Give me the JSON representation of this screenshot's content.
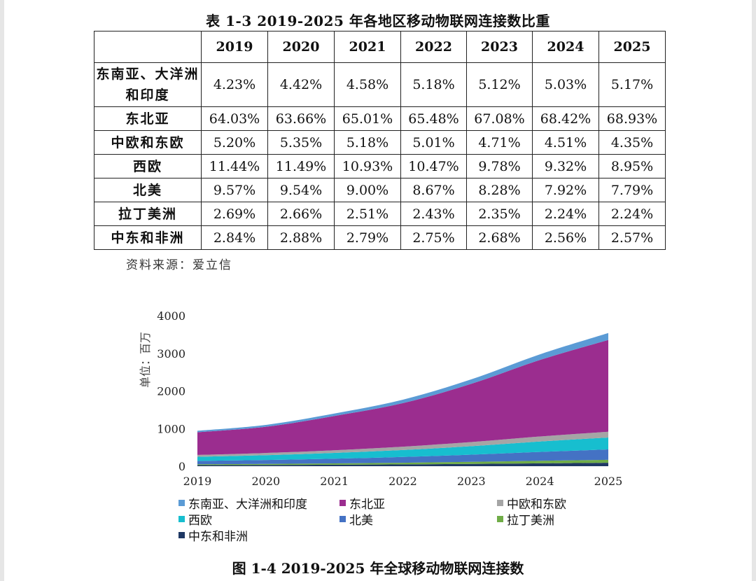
{
  "table": {
    "title": "表 1-3  2019-2025 年各地区移动物联网连接数比重",
    "header": [
      "",
      "2019",
      "2020",
      "2021",
      "2022",
      "2023",
      "2024",
      "2025"
    ],
    "rows": [
      {
        "region": "东南亚、大洋洲和印度",
        "values": [
          "4.23%",
          "4.42%",
          "4.58%",
          "5.18%",
          "5.12%",
          "5.03%",
          "5.17%"
        ]
      },
      {
        "region": "东北亚",
        "values": [
          "64.03%",
          "63.66%",
          "65.01%",
          "65.48%",
          "67.08%",
          "68.42%",
          "68.93%"
        ]
      },
      {
        "region": "中欧和东欧",
        "values": [
          "5.20%",
          "5.35%",
          "5.18%",
          "5.01%",
          "4.71%",
          "4.51%",
          "4.35%"
        ]
      },
      {
        "region": "西欧",
        "values": [
          "11.44%",
          "11.49%",
          "10.93%",
          "10.47%",
          "9.78%",
          "9.32%",
          "8.95%"
        ]
      },
      {
        "region": "北美",
        "values": [
          "9.57%",
          "9.54%",
          "9.00%",
          "8.67%",
          "8.28%",
          "7.92%",
          "7.79%"
        ]
      },
      {
        "region": "拉丁美洲",
        "values": [
          "2.69%",
          "2.66%",
          "2.51%",
          "2.43%",
          "2.35%",
          "2.24%",
          "2.24%"
        ]
      },
      {
        "region": "中东和非洲",
        "values": [
          "2.84%",
          "2.88%",
          "2.79%",
          "2.75%",
          "2.68%",
          "2.56%",
          "2.57%"
        ]
      }
    ],
    "source": "资料来源：爱立信"
  },
  "chart_data": {
    "type": "area",
    "stacked": true,
    "title": "图 1-4  2019-2025 年全球移动物联网连接数",
    "ylabel": "单位：百万",
    "xlabel": "",
    "x": [
      "2019",
      "2020",
      "2021",
      "2022",
      "2023",
      "2024",
      "2025"
    ],
    "ylim": [
      0,
      4000
    ],
    "yticks": [
      0,
      1000,
      2000,
      3000,
      4000
    ],
    "legend_position": "bottom",
    "series": [
      {
        "name": "中东和非洲",
        "color": "#1f3864",
        "values": [
          27,
          32,
          39,
          49,
          62,
          76,
          91
        ]
      },
      {
        "name": "拉丁美洲",
        "color": "#70ad47",
        "values": [
          25,
          29,
          35,
          43,
          54,
          67,
          79
        ]
      },
      {
        "name": "北美",
        "color": "#4472c4",
        "values": [
          90,
          105,
          126,
          153,
          191,
          236,
          276
        ]
      },
      {
        "name": "西欧",
        "color": "#17becf",
        "values": [
          108,
          126,
          153,
          185,
          226,
          277,
          317
        ]
      },
      {
        "name": "中欧和东欧",
        "color": "#a5a5a5",
        "values": [
          49,
          59,
          72,
          89,
          109,
          134,
          154
        ]
      },
      {
        "name": "东北亚",
        "color": "#9b2d8f",
        "values": [
          603,
          698,
          910,
          1157,
          1548,
          2033,
          2439
        ]
      },
      {
        "name": "东南亚、大洋洲和印度",
        "color": "#5b9bd5",
        "values": [
          40,
          48,
          64,
          92,
          118,
          149,
          183
        ]
      }
    ],
    "legend_order": [
      "东南亚、大洋洲和印度",
      "东北亚",
      "中欧和东欧",
      "西欧",
      "北美",
      "拉丁美洲",
      "中东和非洲"
    ]
  }
}
